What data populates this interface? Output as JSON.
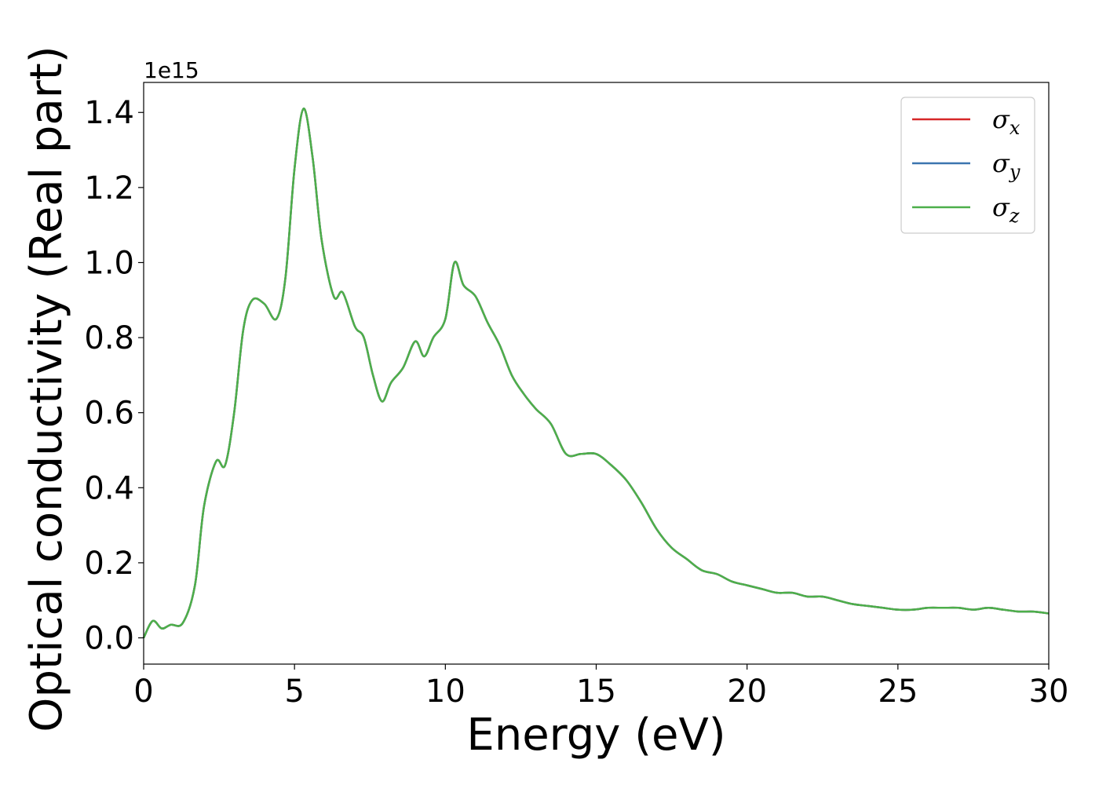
{
  "chart_data": {
    "type": "line",
    "title": "",
    "xlabel": "Energy (eV)",
    "ylabel": "Optical conductivity (Real part)",
    "y_offset_text": "1e15",
    "y_scale": 1000000000000000.0,
    "xlim": [
      0,
      30
    ],
    "ylim": [
      -0.07,
      1.48
    ],
    "xticks": [
      0,
      5,
      10,
      15,
      20,
      25,
      30
    ],
    "xtick_labels": [
      "0",
      "5",
      "10",
      "15",
      "20",
      "25",
      "30"
    ],
    "yticks": [
      0.0,
      0.2,
      0.4,
      0.6,
      0.8,
      1.0,
      1.2,
      1.4
    ],
    "ytick_labels": [
      "0.0",
      "0.2",
      "0.4",
      "0.6",
      "0.8",
      "1.0",
      "1.2",
      "1.4"
    ],
    "grid": false,
    "legend_position": "top-right",
    "x": [
      0,
      0.3,
      0.6,
      0.9,
      1.3,
      1.7,
      2.0,
      2.4,
      2.7,
      3.0,
      3.3,
      3.6,
      4.0,
      4.4,
      4.7,
      5.0,
      5.3,
      5.6,
      5.9,
      6.3,
      6.6,
      7.0,
      7.3,
      7.6,
      7.9,
      8.2,
      8.6,
      9.0,
      9.3,
      9.6,
      10.0,
      10.3,
      10.6,
      11.0,
      11.4,
      11.8,
      12.2,
      12.6,
      13.0,
      13.5,
      14.0,
      14.5,
      15.0,
      15.5,
      16.0,
      16.5,
      17.0,
      17.5,
      18.0,
      18.5,
      19.0,
      19.5,
      20.0,
      20.5,
      21.0,
      21.5,
      22.0,
      22.5,
      23.0,
      23.5,
      24.0,
      24.5,
      25.0,
      25.5,
      26.0,
      26.5,
      27.0,
      27.5,
      28.0,
      28.5,
      29.0,
      29.5,
      30.0
    ],
    "series": [
      {
        "name": "σx",
        "color": "#d62728",
        "values": [
          0.0,
          0.045,
          0.025,
          0.035,
          0.04,
          0.14,
          0.35,
          0.47,
          0.46,
          0.6,
          0.82,
          0.9,
          0.89,
          0.85,
          0.96,
          1.25,
          1.41,
          1.28,
          1.06,
          0.91,
          0.92,
          0.83,
          0.8,
          0.7,
          0.63,
          0.68,
          0.72,
          0.79,
          0.75,
          0.8,
          0.85,
          1.0,
          0.94,
          0.91,
          0.84,
          0.78,
          0.7,
          0.65,
          0.61,
          0.57,
          0.49,
          0.49,
          0.49,
          0.46,
          0.42,
          0.36,
          0.29,
          0.24,
          0.21,
          0.18,
          0.17,
          0.15,
          0.14,
          0.13,
          0.12,
          0.12,
          0.11,
          0.11,
          0.1,
          0.09,
          0.085,
          0.08,
          0.075,
          0.075,
          0.08,
          0.08,
          0.08,
          0.075,
          0.08,
          0.075,
          0.07,
          0.07,
          0.065
        ]
      },
      {
        "name": "σy",
        "color": "#3b75af",
        "values": [
          0.0,
          0.045,
          0.025,
          0.035,
          0.04,
          0.14,
          0.35,
          0.47,
          0.46,
          0.6,
          0.82,
          0.9,
          0.89,
          0.85,
          0.96,
          1.25,
          1.41,
          1.28,
          1.06,
          0.91,
          0.92,
          0.83,
          0.8,
          0.7,
          0.63,
          0.68,
          0.72,
          0.79,
          0.75,
          0.8,
          0.85,
          1.0,
          0.94,
          0.91,
          0.84,
          0.78,
          0.7,
          0.65,
          0.61,
          0.57,
          0.49,
          0.49,
          0.49,
          0.46,
          0.42,
          0.36,
          0.29,
          0.24,
          0.21,
          0.18,
          0.17,
          0.15,
          0.14,
          0.13,
          0.12,
          0.12,
          0.11,
          0.11,
          0.1,
          0.09,
          0.085,
          0.08,
          0.075,
          0.075,
          0.08,
          0.08,
          0.08,
          0.075,
          0.08,
          0.075,
          0.07,
          0.07,
          0.065
        ]
      },
      {
        "name": "σz",
        "color": "#4daf4a",
        "values": [
          0.0,
          0.045,
          0.025,
          0.035,
          0.04,
          0.14,
          0.35,
          0.47,
          0.46,
          0.6,
          0.82,
          0.9,
          0.89,
          0.85,
          0.96,
          1.25,
          1.41,
          1.28,
          1.06,
          0.91,
          0.92,
          0.83,
          0.8,
          0.7,
          0.63,
          0.68,
          0.72,
          0.79,
          0.75,
          0.8,
          0.85,
          1.0,
          0.94,
          0.91,
          0.84,
          0.78,
          0.7,
          0.65,
          0.61,
          0.57,
          0.49,
          0.49,
          0.49,
          0.46,
          0.42,
          0.36,
          0.29,
          0.24,
          0.21,
          0.18,
          0.17,
          0.15,
          0.14,
          0.13,
          0.12,
          0.12,
          0.11,
          0.11,
          0.1,
          0.09,
          0.085,
          0.08,
          0.075,
          0.075,
          0.08,
          0.08,
          0.08,
          0.075,
          0.08,
          0.075,
          0.07,
          0.07,
          0.065
        ]
      }
    ],
    "legend": [
      {
        "symbol": "σ",
        "subscript": "x"
      },
      {
        "symbol": "σ",
        "subscript": "y"
      },
      {
        "symbol": "σ",
        "subscript": "z"
      }
    ]
  }
}
